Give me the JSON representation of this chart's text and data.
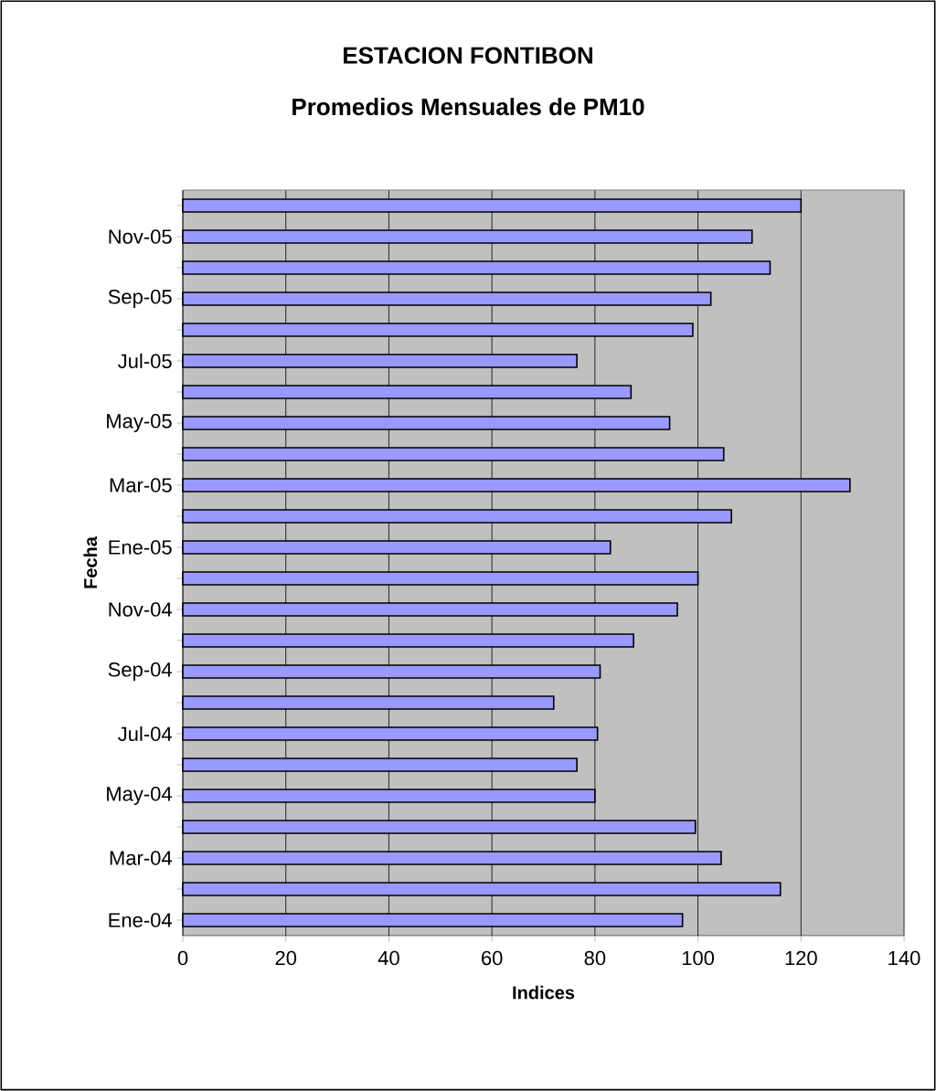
{
  "chart_data": {
    "type": "bar",
    "orientation": "horizontal",
    "title": "ESTACION FONTIBON",
    "subtitle": "Promedios Mensuales de PM10",
    "xlabel": "Indices",
    "ylabel": "Fecha",
    "categories": [
      null,
      "Nov-05",
      null,
      "Sep-05",
      null,
      "Jul-05",
      null,
      "May-05",
      null,
      "Mar-05",
      null,
      "Ene-05",
      null,
      "Nov-04",
      null,
      "Sep-04",
      null,
      "Jul-04",
      null,
      "May-04",
      null,
      "Mar-04",
      null,
      "Ene-04"
    ],
    "values": [
      120,
      110.5,
      114,
      102.5,
      99,
      76.5,
      87,
      94.5,
      105,
      129.5,
      106.5,
      83,
      100,
      96,
      87.5,
      81,
      72,
      80.5,
      76.5,
      80,
      99.5,
      104.5,
      116,
      97
    ],
    "color": "#9999ff",
    "xlim": [
      0,
      140
    ],
    "xticks": [
      0,
      20,
      40,
      60,
      80,
      100,
      120,
      140
    ],
    "grid": "x"
  }
}
